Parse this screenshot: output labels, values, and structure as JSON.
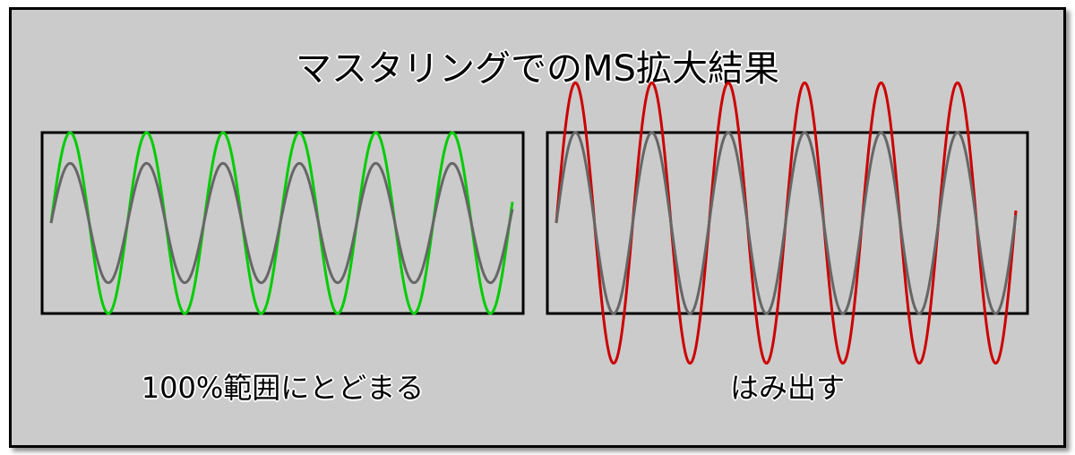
{
  "title": "マスタリングでのMS拡大結果",
  "left_panel": {
    "caption": "100%範囲にとどまる",
    "inner_color": "#666666",
    "outer_color": "#00cc00",
    "inner_amplitude_pct": 66,
    "outer_amplitude_pct": 100,
    "cycles": 6
  },
  "right_panel": {
    "caption": "はみ出す",
    "inner_color": "#666666",
    "outer_color": "#cc0000",
    "inner_amplitude_pct": 100,
    "outer_amplitude_pct": 155,
    "cycles": 6
  },
  "colors": {
    "background": "#cbcbcb",
    "frame": "#000000"
  }
}
